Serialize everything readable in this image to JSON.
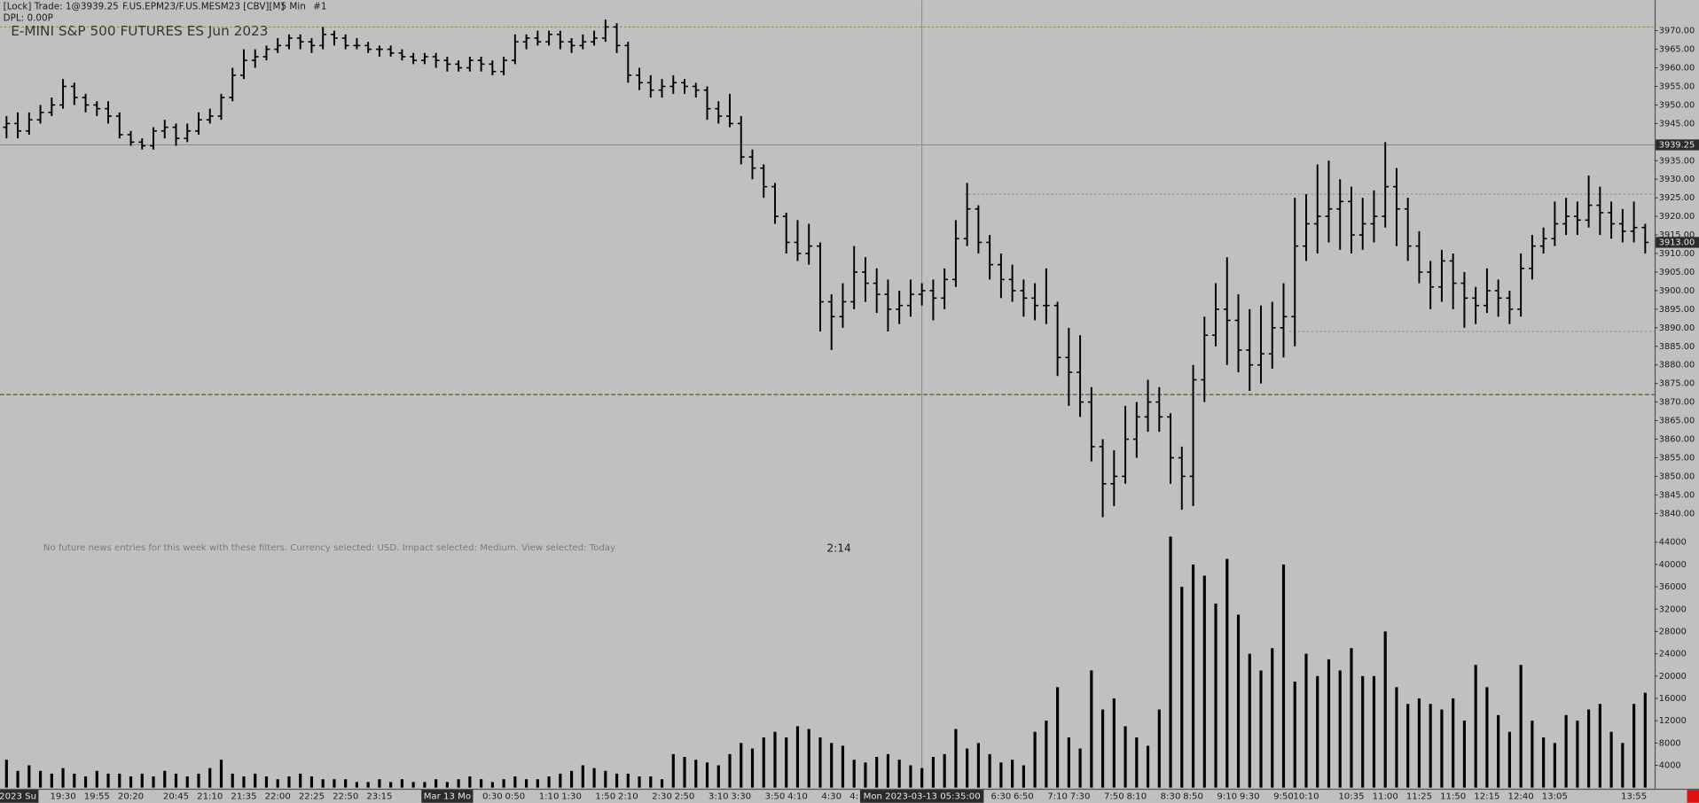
{
  "header": {
    "status": "[Lock] Trade: 1@3939.25",
    "symbol": "F.US.EPM23/F.US.MESM23 [CBV][M]",
    "interval": "5 Min",
    "window": "#1",
    "dpl": "DPL: 0.00P"
  },
  "news_message": "No future news entries for this week with these filters. Currency selected: USD. Impact selected: Medium. View selected: Today",
  "countdown": "2:14",
  "chart_data": {
    "type": "ohlc",
    "title": "E-MINI S&P 500 FUTURES ES Jun 2023",
    "color": "#000000",
    "categories": [
      null,
      "2023 Su",
      null,
      null,
      null,
      "19:30",
      null,
      null,
      "19:55",
      null,
      null,
      "20:20",
      null,
      null,
      null,
      "20:45",
      null,
      null,
      "21:10",
      null,
      null,
      "21:35",
      null,
      null,
      "22:00",
      null,
      null,
      "22:25",
      null,
      null,
      "22:50",
      null,
      null,
      "23:15",
      null,
      null,
      null,
      null,
      null,
      "Mar 13 Mo",
      null,
      null,
      null,
      "0:30",
      null,
      "0:50",
      null,
      null,
      "1:10",
      null,
      "1:30",
      null,
      null,
      "1:50",
      null,
      "2:10",
      null,
      null,
      "2:30",
      null,
      "2:50",
      null,
      null,
      "3:10",
      null,
      "3:30",
      null,
      null,
      "3:50",
      null,
      "4:10",
      null,
      null,
      "4:30",
      null,
      "4:",
      null,
      null,
      null,
      null,
      null,
      null,
      null,
      null,
      null,
      null,
      null,
      null,
      "6:30",
      null,
      "6:50",
      null,
      null,
      "7:10",
      null,
      "7:30",
      null,
      null,
      "7:50",
      null,
      "8:10",
      null,
      null,
      "8:30",
      null,
      "8:50",
      null,
      null,
      "9:10",
      null,
      "9:30",
      null,
      null,
      "9:50",
      null,
      "10:10",
      null,
      null,
      null,
      "10:35",
      null,
      null,
      "11:00",
      null,
      null,
      "11:25",
      null,
      null,
      "11:50",
      null,
      null,
      "12:15",
      null,
      null,
      "12:40",
      null,
      null,
      "13:05",
      null,
      null,
      null,
      null,
      null,
      null,
      "13:55",
      null
    ],
    "open": [
      3944,
      3945,
      3943,
      3946,
      3948,
      3950,
      3955,
      3952,
      3950,
      3949,
      3947,
      3942,
      3940,
      3939,
      3943,
      3944,
      3941,
      3943,
      3946,
      3947,
      3952,
      3958,
      3962,
      3963,
      3965,
      3966,
      3968,
      3967,
      3966,
      3969,
      3968,
      3966,
      3966,
      3965,
      3965,
      3964,
      3963,
      3962,
      3963,
      3962,
      3961,
      3960,
      3962,
      3961,
      3959,
      3962,
      3967,
      3968,
      3967,
      3969,
      3967,
      3966,
      3967,
      3968,
      3971,
      3966,
      3958,
      3956,
      3954,
      3955,
      3956,
      3955,
      3954,
      3949,
      3947,
      3945,
      3936,
      3933,
      3928,
      3920,
      3913,
      3910,
      3912,
      3897,
      3893,
      3897,
      3905,
      3902,
      3899,
      3895,
      3896,
      3899,
      3900,
      3898,
      3903,
      3914,
      3922,
      3913,
      3907,
      3903,
      3900,
      3898,
      3896,
      3896,
      3882,
      3878,
      3870,
      3858,
      3848,
      3850,
      3860,
      3866,
      3870,
      3866,
      3855,
      3850,
      3876,
      3888,
      3895,
      3892,
      3884,
      3880,
      3883,
      3890,
      3893,
      3912,
      3918,
      3920,
      3922,
      3924,
      3915,
      3918,
      3920,
      3928,
      3922,
      3912,
      3905,
      3901,
      3908,
      3902,
      3898,
      3896,
      3900,
      3898,
      3895,
      3906,
      3912,
      3914,
      3918,
      3920,
      3919,
      3923,
      3921,
      3918,
      3916,
      3917
    ],
    "high": [
      3947,
      3948,
      3948,
      3950,
      3952,
      3957,
      3956,
      3953,
      3951,
      3951,
      3948,
      3943,
      3941,
      3944,
      3946,
      3945,
      3945,
      3948,
      3949,
      3953,
      3960,
      3965,
      3965,
      3966,
      3968,
      3969,
      3969,
      3968,
      3971,
      3970,
      3969,
      3968,
      3967,
      3966,
      3966,
      3965,
      3964,
      3964,
      3964,
      3963,
      3962,
      3963,
      3963,
      3962,
      3963,
      3969,
      3969,
      3970,
      3970,
      3970,
      3968,
      3969,
      3970,
      3973,
      3972,
      3967,
      3960,
      3958,
      3957,
      3958,
      3957,
      3956,
      3955,
      3951,
      3953,
      3947,
      3938,
      3934,
      3929,
      3921,
      3919,
      3918,
      3913,
      3899,
      3902,
      3912,
      3909,
      3906,
      3903,
      3900,
      3903,
      3902,
      3903,
      3906,
      3919,
      3929,
      3923,
      3915,
      3910,
      3907,
      3903,
      3902,
      3906,
      3897,
      3890,
      3888,
      3874,
      3860,
      3857,
      3869,
      3870,
      3876,
      3874,
      3867,
      3858,
      3880,
      3893,
      3902,
      3909,
      3899,
      3895,
      3896,
      3897,
      3902,
      3925,
      3926,
      3934,
      3935,
      3930,
      3928,
      3925,
      3927,
      3940,
      3933,
      3925,
      3916,
      3908,
      3911,
      3910,
      3905,
      3901,
      3906,
      3903,
      3900,
      3910,
      3915,
      3917,
      3924,
      3925,
      3924,
      3931,
      3928,
      3924,
      3922,
      3924,
      3918
    ],
    "low": [
      3941,
      3941,
      3942,
      3945,
      3947,
      3949,
      3950,
      3948,
      3947,
      3945,
      3941,
      3939,
      3938,
      3938,
      3941,
      3939,
      3940,
      3942,
      3945,
      3946,
      3951,
      3957,
      3960,
      3962,
      3964,
      3965,
      3965,
      3964,
      3965,
      3966,
      3965,
      3965,
      3964,
      3963,
      3963,
      3962,
      3961,
      3961,
      3960,
      3959,
      3959,
      3959,
      3959,
      3958,
      3958,
      3961,
      3965,
      3966,
      3966,
      3965,
      3964,
      3965,
      3966,
      3967,
      3964,
      3956,
      3954,
      3952,
      3952,
      3953,
      3953,
      3952,
      3946,
      3945,
      3944,
      3934,
      3930,
      3925,
      3918,
      3910,
      3908,
      3907,
      3889,
      3884,
      3890,
      3895,
      3897,
      3894,
      3889,
      3891,
      3893,
      3896,
      3892,
      3895,
      3901,
      3912,
      3910,
      3903,
      3898,
      3897,
      3893,
      3892,
      3891,
      3877,
      3869,
      3866,
      3854,
      3839,
      3842,
      3848,
      3855,
      3862,
      3862,
      3848,
      3841,
      3842,
      3870,
      3885,
      3880,
      3878,
      3873,
      3875,
      3879,
      3882,
      3885,
      3908,
      3910,
      3913,
      3911,
      3910,
      3911,
      3913,
      3917,
      3912,
      3908,
      3902,
      3895,
      3897,
      3895,
      3890,
      3891,
      3894,
      3893,
      3891,
      3893,
      3903,
      3910,
      3912,
      3915,
      3915,
      3917,
      3915,
      3914,
      3913,
      3913,
      3910
    ],
    "close": [
      3945,
      3943,
      3946,
      3948,
      3950,
      3955,
      3952,
      3950,
      3949,
      3947,
      3942,
      3940,
      3939,
      3943,
      3944,
      3941,
      3943,
      3946,
      3947,
      3952,
      3958,
      3962,
      3963,
      3965,
      3966,
      3968,
      3967,
      3966,
      3969,
      3968,
      3966,
      3966,
      3965,
      3965,
      3964,
      3963,
      3962,
      3963,
      3962,
      3961,
      3960,
      3962,
      3961,
      3959,
      3962,
      3967,
      3968,
      3967,
      3969,
      3967,
      3966,
      3967,
      3968,
      3971,
      3966,
      3958,
      3956,
      3954,
      3955,
      3956,
      3955,
      3954,
      3949,
      3947,
      3945,
      3936,
      3933,
      3928,
      3920,
      3913,
      3910,
      3912,
      3897,
      3893,
      3897,
      3905,
      3902,
      3899,
      3895,
      3896,
      3899,
      3900,
      3898,
      3903,
      3914,
      3922,
      3913,
      3907,
      3903,
      3900,
      3898,
      3896,
      3896,
      3882,
      3878,
      3870,
      3858,
      3848,
      3850,
      3860,
      3866,
      3870,
      3866,
      3855,
      3850,
      3876,
      3888,
      3895,
      3892,
      3884,
      3880,
      3883,
      3890,
      3893,
      3912,
      3918,
      3920,
      3922,
      3924,
      3915,
      3918,
      3920,
      3928,
      3922,
      3912,
      3905,
      3901,
      3908,
      3902,
      3898,
      3896,
      3900,
      3898,
      3895,
      3906,
      3912,
      3914,
      3918,
      3920,
      3919,
      3923,
      3921,
      3918,
      3916,
      3917,
      3913
    ],
    "volume": [
      5000,
      3000,
      4000,
      3000,
      2500,
      3500,
      2500,
      2000,
      3000,
      2500,
      2500,
      2000,
      2500,
      2000,
      3000,
      2500,
      2000,
      2500,
      3500,
      5000,
      2500,
      2000,
      2500,
      2000,
      1500,
      2000,
      2500,
      2000,
      1500,
      1500,
      1500,
      1000,
      1000,
      1500,
      1000,
      1500,
      1000,
      1000,
      1500,
      1000,
      1500,
      2000,
      1500,
      1000,
      1500,
      2000,
      1500,
      1500,
      2000,
      2500,
      3000,
      4000,
      3500,
      3000,
      2500,
      2500,
      2000,
      2000,
      1500,
      6000,
      5500,
      5000,
      4500,
      4000,
      6000,
      8000,
      7000,
      9000,
      10000,
      9000,
      11000,
      10500,
      9000,
      8000,
      7500,
      5000,
      4500,
      5500,
      6000,
      5000,
      4000,
      3500,
      5500,
      6000,
      10500,
      7000,
      8000,
      6000,
      4500,
      5000,
      4000,
      10000,
      12000,
      18000,
      9000,
      7000,
      21000,
      14000,
      16000,
      11000,
      9000,
      7500,
      14000,
      45000,
      36000,
      40000,
      38000,
      33000,
      41000,
      31000,
      24000,
      21000,
      25000,
      40000,
      19000,
      24000,
      20000,
      23000,
      21000,
      25000,
      20000,
      20000,
      28000,
      18000,
      15000,
      16000,
      15000,
      14000,
      16000,
      12000,
      22000,
      18000,
      13000,
      10000,
      22000,
      12000,
      9000,
      8000,
      13000,
      12000,
      14000,
      15000,
      10000,
      8000,
      15000,
      17000
    ],
    "ylim": [
      3835.3,
      3978.2
    ],
    "yticks": [
      {
        "value": 3970,
        "label": "3970.00"
      },
      {
        "value": 3965,
        "label": "3965.00"
      },
      {
        "value": 3960,
        "label": "3960.00"
      },
      {
        "value": 3955,
        "label": "3955.00"
      },
      {
        "value": 3950,
        "label": "3950.00"
      },
      {
        "value": 3945,
        "label": "3945.00"
      },
      {
        "value": 3935,
        "label": "3935.00"
      },
      {
        "value": 3930,
        "label": "3930.00"
      },
      {
        "value": 3925,
        "label": "3925.00"
      },
      {
        "value": 3920,
        "label": "3920.00"
      },
      {
        "value": 3915,
        "label": "3915.00"
      },
      {
        "value": 3910,
        "label": "3910.00"
      },
      {
        "value": 3905,
        "label": "3905.00"
      },
      {
        "value": 3900,
        "label": "3900.00"
      },
      {
        "value": 3895,
        "label": "3895.00"
      },
      {
        "value": 3890,
        "label": "3890.00"
      },
      {
        "value": 3885,
        "label": "3885.00"
      },
      {
        "value": 3880,
        "label": "3880.00"
      },
      {
        "value": 3875,
        "label": "3875.00"
      },
      {
        "value": 3870,
        "label": "3870.00"
      },
      {
        "value": 3865,
        "label": "3865.00"
      },
      {
        "value": 3860,
        "label": "3860.00"
      },
      {
        "value": 3855,
        "label": "3855.00"
      },
      {
        "value": 3850,
        "label": "3850.00"
      },
      {
        "value": 3845,
        "label": "3845.00"
      },
      {
        "value": 3840,
        "label": "3840.00"
      }
    ],
    "volume_ylim": [
      0,
      45750
    ],
    "volume_yticks": [
      44000,
      40000,
      36000,
      32000,
      28000,
      24000,
      20000,
      16000,
      12000,
      8000,
      4000
    ],
    "levels": [
      3971,
      3926,
      3889,
      3872
    ],
    "crosshair_price": {
      "value": 3939.25,
      "label": "3939.25"
    },
    "last_price": {
      "value": 3913,
      "label": "3913.00"
    },
    "crosshair_time": "Mon 2023-03-13 05:35:00"
  }
}
